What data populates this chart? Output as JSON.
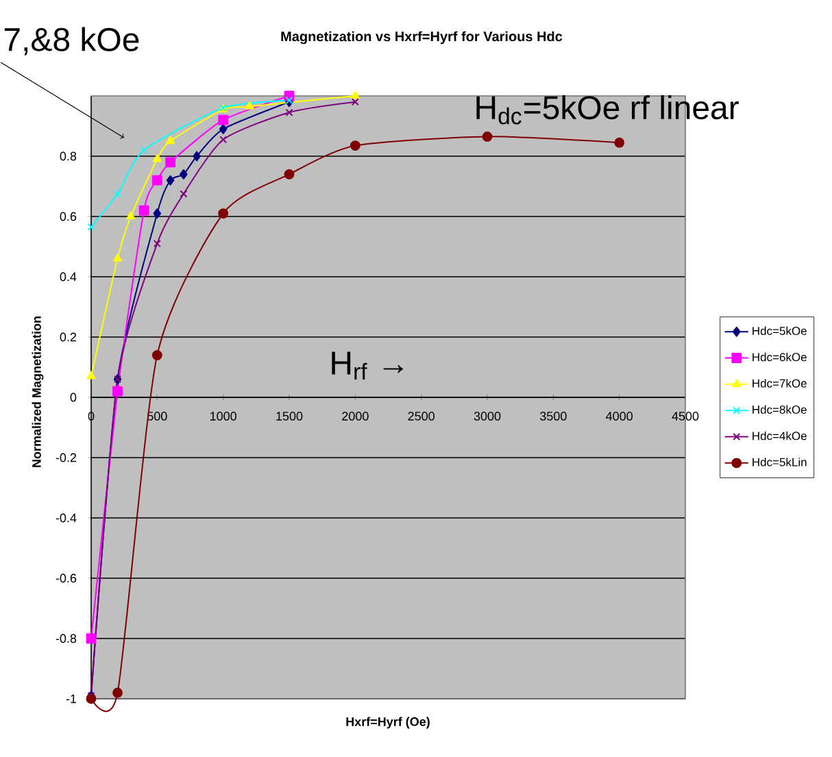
{
  "chart_data": {
    "type": "line",
    "title": "Magnetization vs Hxrf=Hyrf for Various Hdc",
    "xlabel": "Hxrf=Hyrf (Oe)",
    "ylabel": "Normalized Magnetization",
    "xlim": [
      0,
      4500
    ],
    "ylim": [
      -1,
      1
    ],
    "xticks": [
      0,
      500,
      1000,
      1500,
      2000,
      2500,
      3000,
      3500,
      4000,
      4500
    ],
    "yticks": [
      -1,
      -0.8,
      -0.6,
      -0.4,
      -0.2,
      0,
      0.2,
      0.4,
      0.6,
      0.8
    ],
    "grid": "y",
    "legend": "right",
    "annotations": [
      "7,&8 kOe",
      "H$_{dc}$=5kOe  rf linear",
      "H$_{rf}$ →"
    ],
    "series": [
      {
        "name": "Hdc=5kOe",
        "color": "#000080",
        "marker": "diamond",
        "x": [
          0,
          200,
          500,
          600,
          700,
          800,
          1000,
          1500
        ],
        "values": [
          -0.99,
          0.06,
          0.61,
          0.72,
          0.74,
          0.8,
          0.89,
          0.98
        ]
      },
      {
        "name": "Hdc=6kOe",
        "color": "#ff00ff",
        "marker": "square",
        "x": [
          0,
          200,
          400,
          500,
          600,
          1000,
          1500
        ],
        "values": [
          -0.8,
          0.02,
          0.62,
          0.72,
          0.78,
          0.92,
          1.0
        ]
      },
      {
        "name": "Hdc=7kOe",
        "color": "#ffff00",
        "marker": "triangle",
        "x": [
          0,
          200,
          300,
          500,
          600,
          1000,
          1200,
          2000
        ],
        "values": [
          0.07,
          0.46,
          0.6,
          0.79,
          0.85,
          0.955,
          0.965,
          1.0
        ]
      },
      {
        "name": "Hdc=8kOe",
        "color": "#00ffff",
        "marker": "cross",
        "x": [
          0,
          200,
          400,
          1000,
          1500
        ],
        "values": [
          0.565,
          0.675,
          0.82,
          0.96,
          0.985
        ]
      },
      {
        "name": "Hdc=4kOe",
        "color": "#800080",
        "marker": "cross",
        "x": [
          0,
          200,
          500,
          700,
          1000,
          1500,
          2000
        ],
        "values": [
          -0.99,
          0.06,
          0.51,
          0.675,
          0.855,
          0.945,
          0.98
        ]
      },
      {
        "name": "Hdc=5kLin",
        "color": "#800000",
        "marker": "circle",
        "x": [
          0,
          200,
          500,
          1000,
          1500,
          2000,
          3000,
          4000
        ],
        "values": [
          -1.0,
          -0.98,
          0.14,
          0.61,
          0.74,
          0.835,
          0.865,
          0.845
        ]
      }
    ]
  }
}
